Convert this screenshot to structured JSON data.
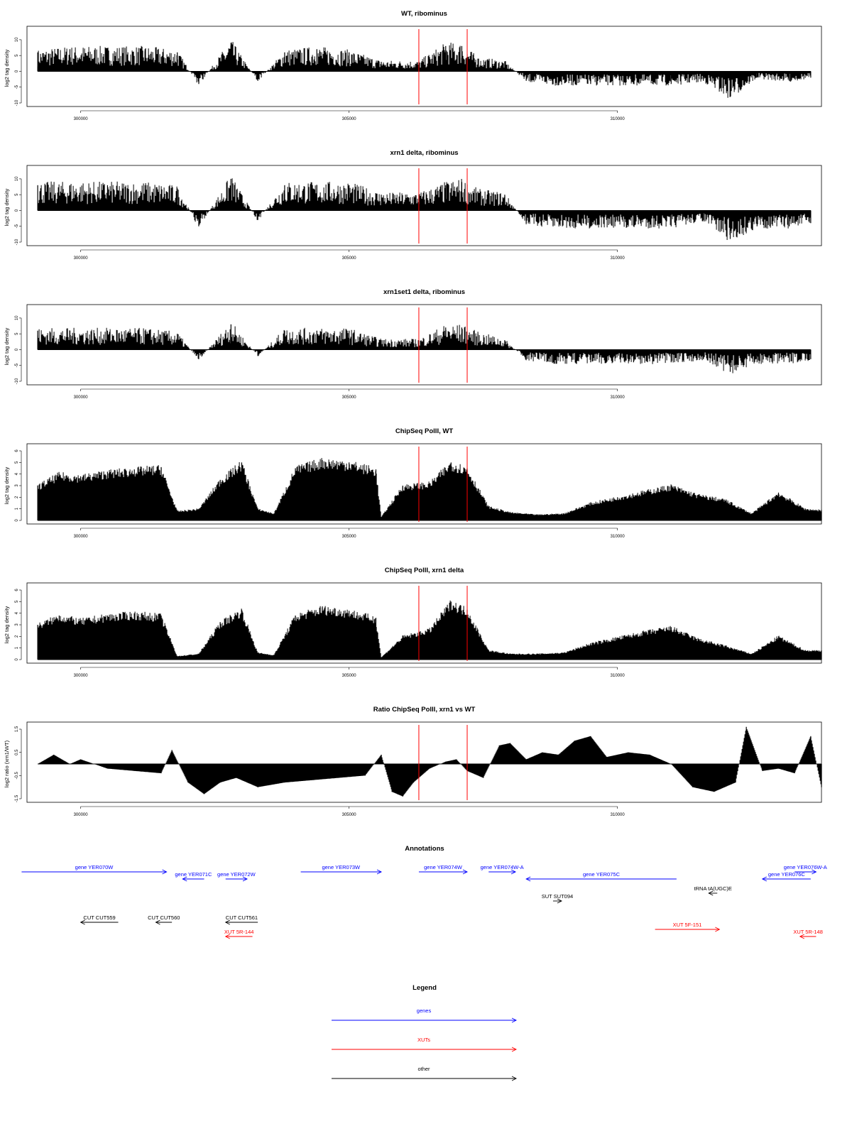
{
  "colors": {
    "gene": "#0000ff",
    "xut": "#ff0000",
    "other": "#000000",
    "marker": "#ff0000",
    "bar": "#000000"
  },
  "chart_data": [
    {
      "type": "bar",
      "title": "WT, ribominus",
      "ylabel": "log2 tag density",
      "ylim": [
        -10,
        12
      ],
      "yticks": [
        "-10",
        "-5",
        "0",
        "5",
        "10"
      ],
      "xlim": [
        299000,
        313800
      ],
      "xticks": [
        "300000",
        "305000",
        "310000"
      ],
      "markers": [
        306300,
        307200
      ],
      "x": [
        299200,
        299800,
        300500,
        301200,
        301800,
        302200,
        302800,
        303300,
        303800,
        304400,
        305000,
        305600,
        306300,
        306800,
        307100,
        307400,
        307900,
        308300,
        308800,
        309500,
        310300,
        311000,
        311600,
        312100,
        312600,
        313200,
        313600
      ],
      "values": [
        6,
        7,
        7,
        7,
        6,
        -4,
        9,
        -3,
        6,
        7,
        6,
        3,
        3,
        8,
        8,
        4,
        3,
        -3,
        -4,
        -4,
        -4,
        -4,
        -3,
        -8,
        -2,
        -3,
        -2
      ]
    },
    {
      "type": "bar",
      "title": "xrn1 delta, ribominus",
      "ylabel": "log2 tag density",
      "ylim": [
        -10,
        12
      ],
      "yticks": [
        "-10",
        "-5",
        "0",
        "5",
        "10"
      ],
      "xlim": [
        299000,
        313800
      ],
      "xticks": [
        "300000",
        "305000",
        "310000"
      ],
      "markers": [
        306300,
        307200
      ],
      "x": [
        299200,
        299800,
        300500,
        301200,
        301800,
        302200,
        302800,
        303300,
        303800,
        304400,
        305000,
        305600,
        306300,
        306800,
        307100,
        307400,
        307900,
        308300,
        308800,
        309500,
        310300,
        311000,
        311600,
        312100,
        312600,
        313200,
        313600
      ],
      "values": [
        8,
        8,
        8,
        8,
        7,
        -5,
        10,
        -3,
        8,
        8,
        8,
        5,
        5,
        8,
        9,
        6,
        5,
        -4,
        -5,
        -5,
        -5,
        -5,
        -3,
        -9,
        -5,
        -5,
        -4
      ]
    },
    {
      "type": "bar",
      "title": "xrn1set1 delta, ribominus",
      "ylabel": "log2 tag density",
      "ylim": [
        -10,
        12
      ],
      "yticks": [
        "-10",
        "-5",
        "0",
        "5",
        "10"
      ],
      "xlim": [
        299000,
        313800
      ],
      "xticks": [
        "300000",
        "305000",
        "310000"
      ],
      "markers": [
        306300,
        307200
      ],
      "x": [
        299200,
        299800,
        300500,
        301200,
        301800,
        302200,
        302800,
        303300,
        303800,
        304400,
        305000,
        305600,
        306300,
        306800,
        307100,
        307400,
        307900,
        308300,
        308800,
        309500,
        310300,
        311000,
        311600,
        312100,
        312600,
        313200,
        313600
      ],
      "values": [
        6,
        6,
        6,
        6,
        5,
        -3,
        8,
        -2,
        6,
        6,
        6,
        3,
        3,
        7,
        7,
        5,
        3,
        -3,
        -4,
        -4,
        -4,
        -4,
        -3,
        -7,
        -4,
        -4,
        -3
      ]
    },
    {
      "type": "area",
      "title": "ChipSeq PolII, WT",
      "ylabel": "log2 tag density",
      "ylim": [
        0,
        6
      ],
      "yticks": [
        "0",
        "1",
        "2",
        "3",
        "4",
        "5",
        "6"
      ],
      "xlim": [
        299000,
        313800
      ],
      "xticks": [
        "300000",
        "305000",
        "310000"
      ],
      "markers": [
        306300,
        307200
      ],
      "x": [
        299200,
        299600,
        300000,
        300500,
        301000,
        301500,
        301800,
        302200,
        302600,
        303000,
        303300,
        303600,
        304000,
        304500,
        305000,
        305500,
        305600,
        306000,
        306500,
        306900,
        307200,
        307600,
        308000,
        308500,
        309000,
        309500,
        310000,
        310500,
        311000,
        311500,
        312000,
        312500,
        313000,
        313500,
        313800
      ],
      "values": [
        3.0,
        4.0,
        3.8,
        4.2,
        4.4,
        4.6,
        0.8,
        1.0,
        3.5,
        5.0,
        1.0,
        0.6,
        4.5,
        5.2,
        5.0,
        4.4,
        0.3,
        3.0,
        3.2,
        5.0,
        4.5,
        1.2,
        0.7,
        0.5,
        0.6,
        1.5,
        2.0,
        2.5,
        3.0,
        2.2,
        1.8,
        0.6,
        2.4,
        1.0,
        0.9
      ]
    },
    {
      "type": "area",
      "title": "ChipSeq PolII, xrn1 delta",
      "ylabel": "log2 tag density",
      "ylim": [
        0,
        6
      ],
      "yticks": [
        "0",
        "1",
        "2",
        "3",
        "4",
        "5",
        "6"
      ],
      "xlim": [
        299000,
        313800
      ],
      "xticks": [
        "300000",
        "305000",
        "310000"
      ],
      "markers": [
        306300,
        307200
      ],
      "x": [
        299200,
        299600,
        300000,
        300500,
        301000,
        301500,
        301800,
        302200,
        302600,
        303000,
        303300,
        303600,
        304000,
        304500,
        305000,
        305500,
        305600,
        306000,
        306500,
        306900,
        307200,
        307600,
        308000,
        308500,
        309000,
        309500,
        310000,
        310500,
        311000,
        311500,
        312000,
        312500,
        313000,
        313500,
        313800
      ],
      "values": [
        3.0,
        3.8,
        3.4,
        3.8,
        4.0,
        3.8,
        0.3,
        0.5,
        3.2,
        4.3,
        0.6,
        0.4,
        3.8,
        4.5,
        4.2,
        3.6,
        0.2,
        2.0,
        2.6,
        5.0,
        4.3,
        0.8,
        0.5,
        0.5,
        0.6,
        1.4,
        1.9,
        2.4,
        2.8,
        1.8,
        1.2,
        0.5,
        2.0,
        0.8,
        0.8
      ]
    },
    {
      "type": "area",
      "title": "Ratio ChipSeq PolII, xrn1 vs WT",
      "ylabel": "log2 ratio (xrn1/WT)",
      "ylim": [
        -1.5,
        1.5
      ],
      "yticks": [
        "-1.5",
        "-0.5",
        "0.5",
        "1.5"
      ],
      "xlim": [
        299000,
        313800
      ],
      "xticks": [
        "300000",
        "305000",
        "310000"
      ],
      "markers": [
        306300,
        307200
      ],
      "x": [
        299200,
        299500,
        299800,
        300000,
        300500,
        301000,
        301500,
        301700,
        302000,
        302300,
        302600,
        302900,
        303300,
        303800,
        304300,
        304800,
        305300,
        305600,
        305800,
        306000,
        306200,
        306500,
        306800,
        307000,
        307200,
        307500,
        307800,
        308000,
        308300,
        308600,
        308900,
        309200,
        309500,
        309800,
        310200,
        310600,
        311000,
        311400,
        311800,
        312200,
        312400,
        312700,
        313000,
        313300,
        313600,
        313800
      ],
      "values": [
        0.0,
        0.4,
        0.0,
        0.2,
        -0.2,
        -0.3,
        -0.4,
        0.6,
        -0.8,
        -1.3,
        -0.8,
        -0.6,
        -1.0,
        -0.8,
        -0.7,
        -0.6,
        -0.5,
        0.4,
        -1.2,
        -1.4,
        -0.8,
        -0.2,
        0.1,
        0.2,
        -0.3,
        -0.6,
        0.8,
        0.9,
        0.2,
        0.5,
        0.4,
        1.0,
        1.2,
        0.3,
        0.5,
        0.4,
        0.0,
        -1.0,
        -1.2,
        -0.8,
        1.6,
        -0.3,
        -0.2,
        -0.4,
        1.2,
        -1.0
      ]
    }
  ],
  "annotations": {
    "title": "Annotations",
    "items": [
      {
        "label": "gene YER070W",
        "type": "gene",
        "dir": "right",
        "start": 298900,
        "end": 301600
      },
      {
        "label": "gene YER071C",
        "type": "gene",
        "dir": "left",
        "start": 301900,
        "end": 302300
      },
      {
        "label": "gene YER072W",
        "type": "gene",
        "dir": "right",
        "start": 302700,
        "end": 303100
      },
      {
        "label": "gene YER073W",
        "type": "gene",
        "dir": "right",
        "start": 304100,
        "end": 305600
      },
      {
        "label": "gene YER074W",
        "type": "gene",
        "dir": "right",
        "start": 306300,
        "end": 307200
      },
      {
        "label": "gene YER074W-A",
        "type": "gene",
        "dir": "right",
        "start": 307600,
        "end": 308100
      },
      {
        "label": "gene YER075C",
        "type": "gene",
        "dir": "left",
        "start": 308300,
        "end": 311100
      },
      {
        "label": "gene YER076C",
        "type": "gene",
        "dir": "left",
        "start": 312700,
        "end": 313600
      },
      {
        "label": "gene YER076W-A",
        "type": "gene",
        "dir": "right",
        "start": 313300,
        "end": 313700
      },
      {
        "label": "tRNA tA(UGC)E",
        "type": "other",
        "dir": "left",
        "start": 311700,
        "end": 311800
      },
      {
        "label": "SUT SUT094",
        "type": "other",
        "dir": "right",
        "start": 308800,
        "end": 308950
      },
      {
        "label": "CUT CUT559",
        "type": "other",
        "dir": "left",
        "start": 300000,
        "end": 300700
      },
      {
        "label": "CUT CUT560",
        "type": "other",
        "dir": "left",
        "start": 301400,
        "end": 301700
      },
      {
        "label": "CUT CUT561",
        "type": "other",
        "dir": "left",
        "start": 302700,
        "end": 303300
      },
      {
        "label": "XUT 5R-144",
        "type": "xut",
        "dir": "left",
        "start": 302700,
        "end": 303200
      },
      {
        "label": "XUT 5F-151",
        "type": "xut",
        "dir": "right",
        "start": 310700,
        "end": 311900
      },
      {
        "label": "XUT 5R-148",
        "type": "xut",
        "dir": "left",
        "start": 313400,
        "end": 313700
      }
    ]
  },
  "legend": {
    "title": "Legend",
    "items": [
      {
        "label": "genes",
        "type": "gene"
      },
      {
        "label": "XUTs",
        "type": "xut"
      },
      {
        "label": "other",
        "type": "other"
      }
    ]
  }
}
